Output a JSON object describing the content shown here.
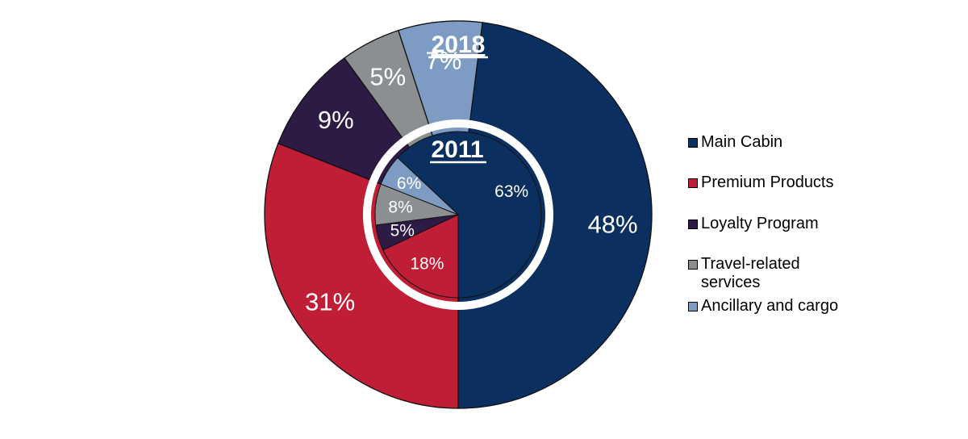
{
  "chart_data": {
    "type": "pie",
    "rings": [
      {
        "name": "2018",
        "title": "2018",
        "slices": [
          {
            "category": "Main Cabin",
            "value": 48,
            "label": "48%"
          },
          {
            "category": "Premium Products",
            "value": 31,
            "label": "31%"
          },
          {
            "category": "Loyalty Program",
            "value": 9,
            "label": "9%"
          },
          {
            "category": "Travel-related services",
            "value": 5,
            "label": "5%"
          },
          {
            "category": "Ancillary and cargo",
            "value": 7,
            "label": "7%"
          }
        ]
      },
      {
        "name": "2011",
        "title": "2011",
        "slices": [
          {
            "category": "Main Cabin",
            "value": 63,
            "label": "63%"
          },
          {
            "category": "Premium Products",
            "value": 18,
            "label": "18%"
          },
          {
            "category": "Loyalty Program",
            "value": 5,
            "label": "5%"
          },
          {
            "category": "Travel-related services",
            "value": 8,
            "label": "8%"
          },
          {
            "category": "Ancillary and cargo",
            "value": 6,
            "label": "6%"
          }
        ]
      }
    ],
    "legend": {
      "placement": "right",
      "entries": [
        {
          "label": "Main Cabin",
          "color": "#0b2f5f"
        },
        {
          "label": "Premium Products",
          "color": "#bf1e36"
        },
        {
          "label": "Loyalty Program",
          "color": "#2e1b45"
        },
        {
          "label": "Travel-related\nservices",
          "color": "#8b8f92"
        },
        {
          "label": "Ancillary and cargo",
          "color": "#7e9cc3"
        }
      ]
    },
    "colors": {
      "Main Cabin": "#0b2f5f",
      "Premium Products": "#bf1e36",
      "Loyalty Program": "#2e1b45",
      "Travel-related services": "#8b8f92",
      "Ancillary and cargo": "#7e9cc3"
    }
  }
}
